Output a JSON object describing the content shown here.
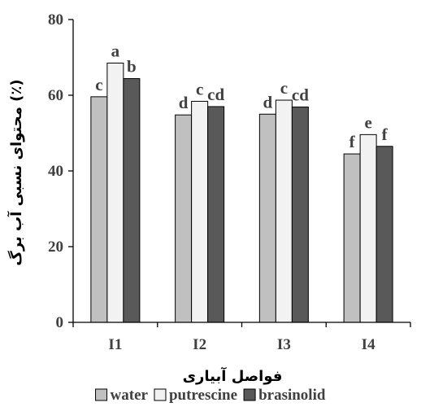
{
  "chart_data": {
    "type": "bar",
    "title": "",
    "xlabel": "فواصل آبیاری",
    "ylabel": "محتوای نسبی آب برگ (٪)",
    "ylim": [
      0,
      80
    ],
    "yticks": [
      0,
      20,
      40,
      60,
      80
    ],
    "categories": [
      "I1",
      "I2",
      "I3",
      "I4"
    ],
    "series": [
      {
        "name": "water",
        "color": "#c0c0c0",
        "values": [
          59.6,
          54.8,
          55.0,
          44.5
        ],
        "labels": [
          "c",
          "d",
          "d",
          "f"
        ]
      },
      {
        "name": "putrescine",
        "color": "#f2f2f2",
        "values": [
          68.5,
          58.4,
          58.7,
          49.6
        ],
        "labels": [
          "a",
          "c",
          "c",
          "e"
        ]
      },
      {
        "name": "brasinolid",
        "color": "#595959",
        "values": [
          64.4,
          57.0,
          56.9,
          46.5
        ],
        "labels": [
          "b",
          "cd",
          "cd",
          "f"
        ]
      }
    ],
    "legend_position": "bottom",
    "grid": false
  }
}
